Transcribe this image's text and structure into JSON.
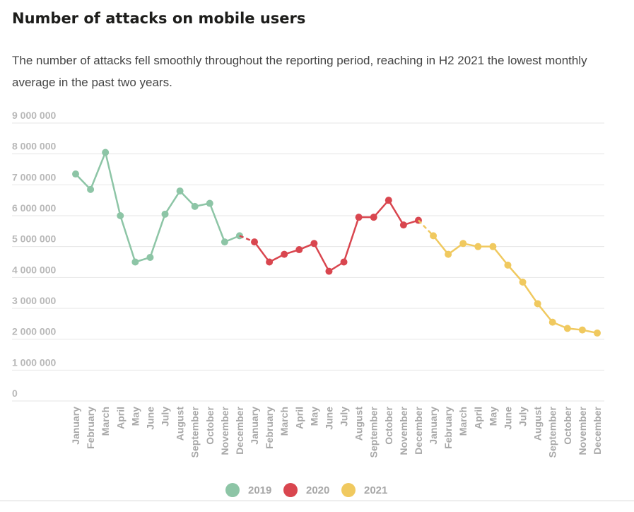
{
  "chart_data": {
    "type": "line",
    "title": "Number of attacks on mobile users",
    "subtitle": "The number of attacks fell smoothly throughout the reporting period, reaching in H2 2021 the lowest monthly average in the past two years.",
    "categories": [
      "January",
      "February",
      "March",
      "April",
      "May",
      "June",
      "July",
      "August",
      "September",
      "October",
      "November",
      "December",
      "January",
      "February",
      "March",
      "April",
      "May",
      "June",
      "July",
      "August",
      "September",
      "October",
      "November",
      "December",
      "January",
      "February",
      "March",
      "April",
      "May",
      "June",
      "July",
      "August",
      "September",
      "October",
      "November",
      "December"
    ],
    "series": [
      {
        "name": "2019",
        "color": "#8dc5a6",
        "values": [
          7350000,
          6850000,
          8050000,
          6000000,
          4500000,
          4650000,
          6050000,
          6800000,
          6300000,
          6400000,
          5150000,
          5350000,
          null,
          null,
          null,
          null,
          null,
          null,
          null,
          null,
          null,
          null,
          null,
          null,
          null,
          null,
          null,
          null,
          null,
          null,
          null,
          null,
          null,
          null,
          null,
          null
        ]
      },
      {
        "name": "2020",
        "color": "#d9464f",
        "values": [
          null,
          null,
          null,
          null,
          null,
          null,
          null,
          null,
          null,
          null,
          null,
          null,
          5150000,
          4500000,
          4750000,
          4900000,
          5100000,
          4200000,
          4500000,
          5950000,
          5950000,
          6500000,
          5700000,
          5850000,
          null,
          null,
          null,
          null,
          null,
          null,
          null,
          null,
          null,
          null,
          null,
          null
        ]
      },
      {
        "name": "2021",
        "color": "#f0c95f",
        "values": [
          null,
          null,
          null,
          null,
          null,
          null,
          null,
          null,
          null,
          null,
          null,
          null,
          null,
          null,
          null,
          null,
          null,
          null,
          null,
          null,
          null,
          null,
          null,
          null,
          5350000,
          4750000,
          5100000,
          5000000,
          5000000,
          4400000,
          3850000,
          3150000,
          2550000,
          2350000,
          2300000,
          2200000
        ]
      }
    ],
    "ylim": [
      0,
      9000000
    ],
    "yticks": [
      0,
      {
        "value": 1000000,
        "label": "1 000 000"
      },
      {
        "value": 2000000,
        "label": "2 000 000"
      },
      {
        "value": 3000000,
        "label": "3 000 000"
      },
      {
        "value": 4000000,
        "label": "4 000 000"
      },
      {
        "value": 5000000,
        "label": "5 000 000"
      },
      {
        "value": 6000000,
        "label": "6 000 000"
      },
      {
        "value": 7000000,
        "label": "7 000 000"
      },
      {
        "value": 8000000,
        "label": "8 000 000"
      },
      {
        "value": 9000000,
        "label": "9 000 000"
      }
    ],
    "grid": true,
    "legend": "bottom"
  }
}
